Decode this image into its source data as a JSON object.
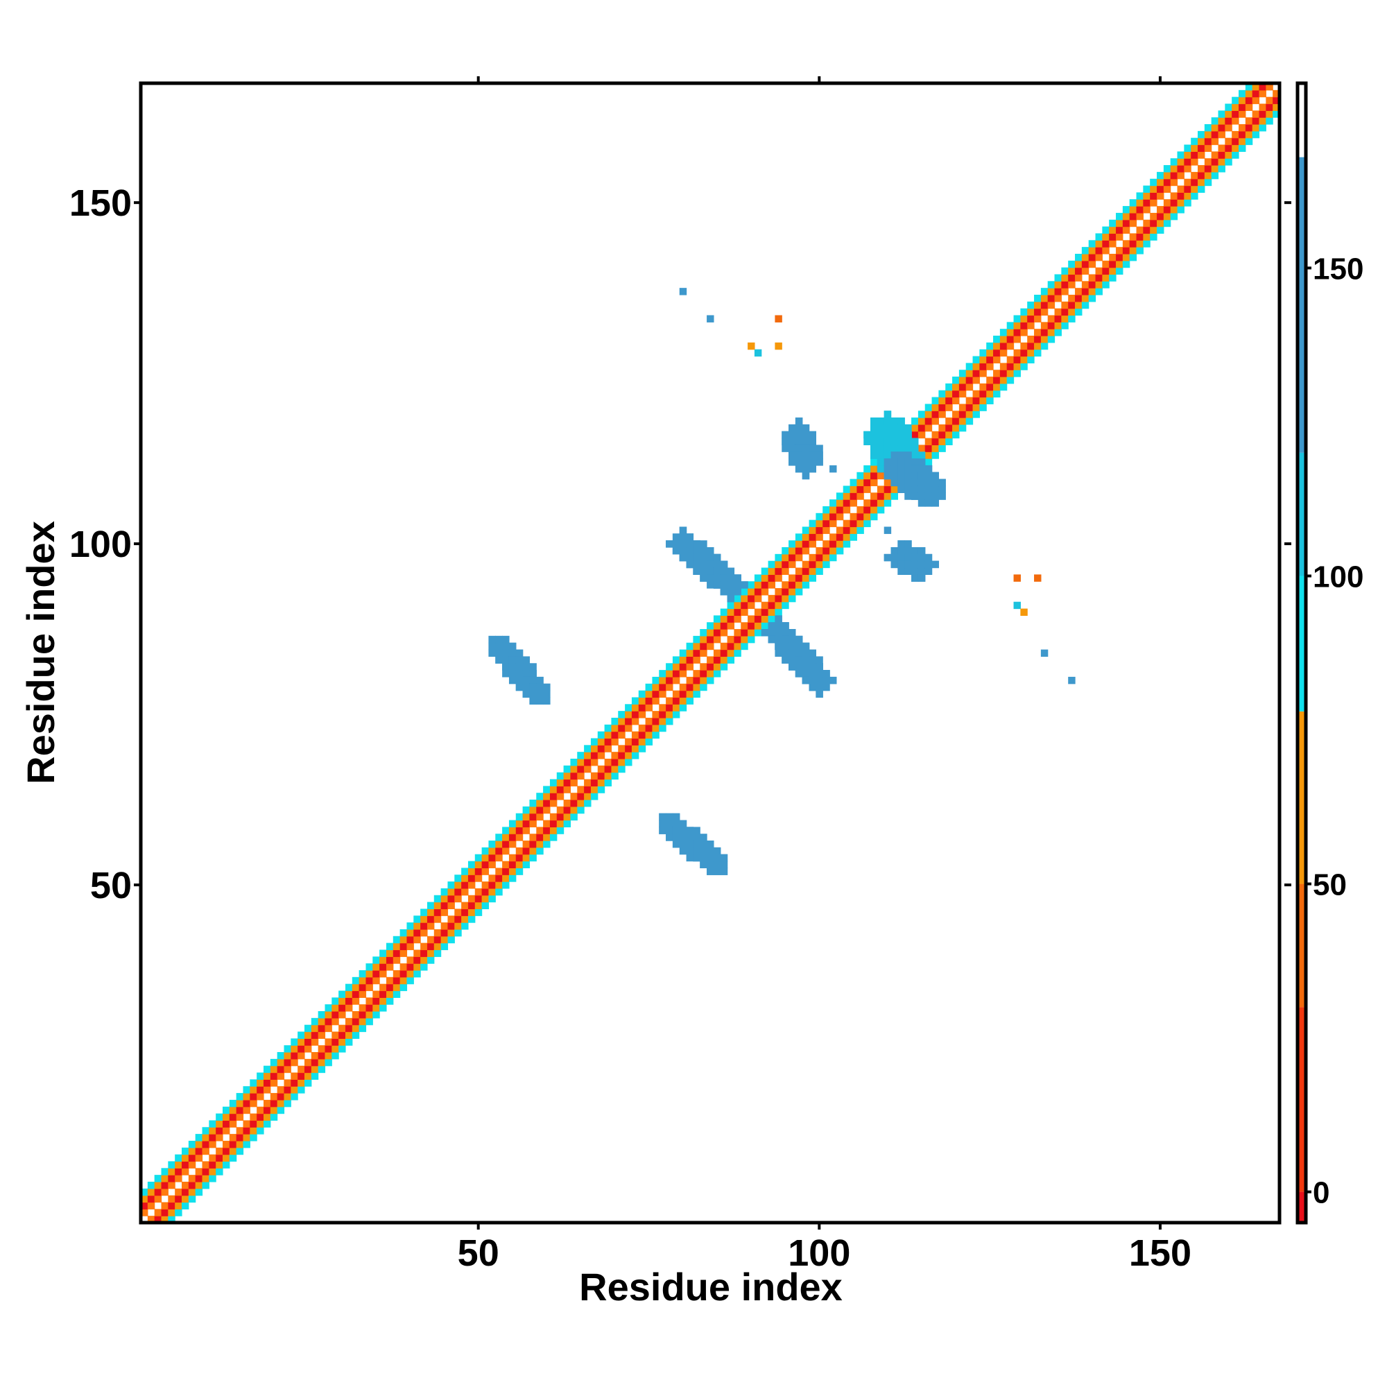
{
  "chart_data": {
    "type": "heatmap",
    "title": "",
    "xlabel": "Residue index",
    "ylabel": "Residue index",
    "xlim": [
      1,
      167
    ],
    "ylim": [
      1,
      167
    ],
    "xticks": [
      50,
      100,
      150
    ],
    "yticks": [
      50,
      100,
      150
    ],
    "grid": false,
    "legend": "colorbar-right",
    "colorbar": {
      "range": [
        -5,
        180
      ],
      "ticks": [
        0,
        50,
        100,
        150
      ],
      "bands": [
        {
          "from": -5,
          "to": 0,
          "color": "#e8101a"
        },
        {
          "from": 0,
          "to": 30,
          "color": "#f0380e"
        },
        {
          "from": 30,
          "to": 50,
          "color": "#f26a0c"
        },
        {
          "from": 50,
          "to": 78,
          "color": "#f5980a"
        },
        {
          "from": 78,
          "to": 100,
          "color": "#11e0ec"
        },
        {
          "from": 100,
          "to": 120,
          "color": "#1cc2de"
        },
        {
          "from": 120,
          "to": 168,
          "color": "#3e98cc"
        },
        {
          "from": 168,
          "to": 180,
          "color": "#ffffff"
        }
      ]
    },
    "diagonal": {
      "from": 1,
      "to": 167,
      "band_colors": {
        "1": "#ff7a0e",
        "2": "#e8101a",
        "3": "#f5980a",
        "4": "#11e0ec"
      }
    },
    "contact_patches": [
      {
        "x": [
          53,
          59
        ],
        "y": [
          85,
          78
        ],
        "width": 1.5,
        "color": "#3e98cc"
      },
      {
        "x": [
          78,
          85
        ],
        "y": [
          59,
          53
        ],
        "width": 1.5,
        "color": "#3e98cc"
      },
      {
        "x": [
          80,
          87
        ],
        "y": [
          100,
          94
        ],
        "width": 2,
        "color": "#3e98cc"
      },
      {
        "x": [
          94,
          100
        ],
        "y": [
          87,
          80
        ],
        "width": 2,
        "color": "#3e98cc"
      },
      {
        "x": [
          97,
          98
        ],
        "y": [
          116,
          112
        ],
        "width": 2,
        "color": "#3e98cc"
      },
      {
        "x": [
          110,
          112
        ],
        "y": [
          116,
          112
        ],
        "width": 3,
        "color": "#1cc2de"
      },
      {
        "x": [
          112,
          116
        ],
        "y": [
          111,
          108
        ],
        "width": 2.5,
        "color": "#3e98cc"
      },
      {
        "x": [
          112,
          115
        ],
        "y": [
          98,
          97
        ],
        "width": 2,
        "color": "#3e98cc"
      }
    ],
    "contact_points": [
      {
        "x": 80,
        "y": 137,
        "value": 150
      },
      {
        "x": 84,
        "y": 133,
        "value": 150
      },
      {
        "x": 90,
        "y": 129,
        "value": 60
      },
      {
        "x": 91,
        "y": 128,
        "value": 100
      },
      {
        "x": 94,
        "y": 133,
        "value": 40
      },
      {
        "x": 94,
        "y": 129,
        "value": 50
      },
      {
        "x": 102,
        "y": 111,
        "value": 130
      },
      {
        "x": 110,
        "y": 102,
        "value": 130
      },
      {
        "x": 129,
        "y": 95,
        "value": 40
      },
      {
        "x": 132,
        "y": 95,
        "value": 40
      },
      {
        "x": 129,
        "y": 91,
        "value": 100
      },
      {
        "x": 130,
        "y": 90,
        "value": 60
      },
      {
        "x": 133,
        "y": 84,
        "value": 150
      },
      {
        "x": 137,
        "y": 80,
        "value": 150
      }
    ]
  }
}
